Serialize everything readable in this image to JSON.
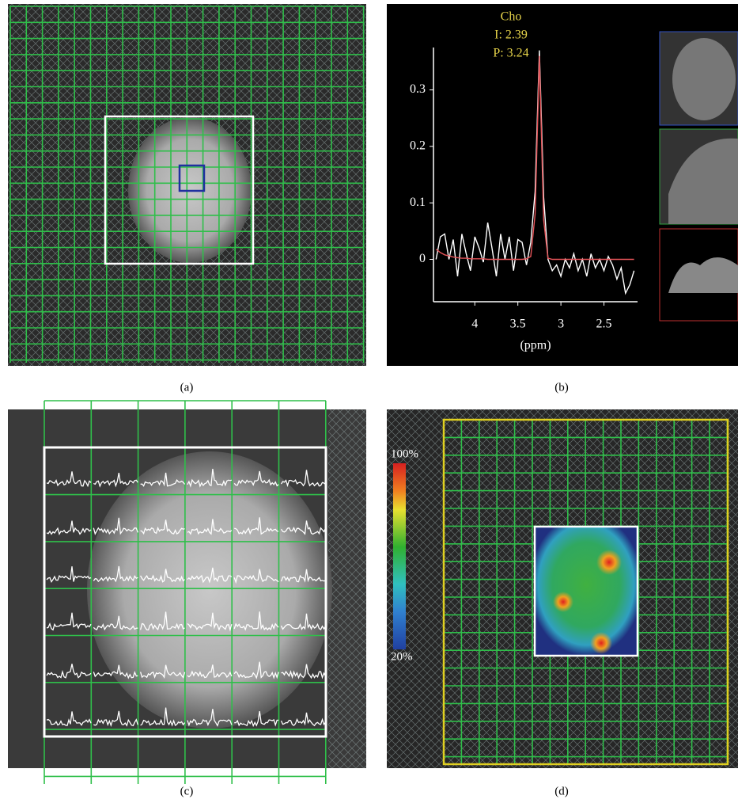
{
  "panel_labels": [
    "(a)",
    "(b)",
    "(c)",
    "(d)"
  ],
  "colorbar_labels": [
    "100%",
    "20%"
  ],
  "chart_data": {
    "type": "line",
    "annotation": [
      "Cho",
      "I: 2.39",
      "P: 3.24"
    ],
    "x_label": "(ppm)",
    "x": [
      4.45,
      4.4,
      4.35,
      4.3,
      4.25,
      4.2,
      4.15,
      4.1,
      4.05,
      4.0,
      3.95,
      3.9,
      3.85,
      3.8,
      3.75,
      3.7,
      3.65,
      3.6,
      3.55,
      3.5,
      3.45,
      3.4,
      3.35,
      3.3,
      3.25,
      3.2,
      3.15,
      3.1,
      3.05,
      3.0,
      2.95,
      2.9,
      2.85,
      2.8,
      2.75,
      2.7,
      2.65,
      2.6,
      2.55,
      2.5,
      2.45,
      2.4,
      2.35,
      2.3,
      2.25,
      2.2,
      2.15
    ],
    "series": [
      {
        "color": "#ffffff",
        "values": [
          0.0,
          0.04,
          0.045,
          0.0,
          0.035,
          -0.03,
          0.045,
          0.01,
          -0.02,
          0.04,
          0.02,
          -0.005,
          0.065,
          0.02,
          -0.03,
          0.045,
          0.0,
          0.04,
          -0.02,
          0.035,
          0.03,
          -0.01,
          0.03,
          0.12,
          0.37,
          0.11,
          0.0,
          -0.02,
          -0.01,
          -0.03,
          0.0,
          -0.015,
          0.01,
          -0.02,
          0.0,
          -0.03,
          0.01,
          -0.015,
          0.0,
          -0.02,
          0.005,
          -0.01,
          -0.035,
          -0.015,
          -0.06,
          -0.045,
          -0.02
        ]
      },
      {
        "color": "#e8555a",
        "values": [
          0.018,
          0.012,
          0.008,
          0.006,
          0.004,
          0.003,
          0.002,
          0.002,
          0.001,
          0.001,
          0.001,
          0.001,
          0.0,
          0.0,
          0.0,
          0.0,
          0.0,
          0.0,
          0.0,
          0.0,
          0.0,
          0.001,
          0.005,
          0.08,
          0.36,
          0.07,
          0.002,
          0.0,
          0.0,
          0.0,
          0.0,
          0.0,
          0.0,
          0.0,
          0.0,
          0.0,
          0.0,
          0.0,
          0.0,
          0.0,
          0.0,
          0.0,
          0.0,
          0.0,
          0.0,
          0.0,
          0.0
        ]
      }
    ],
    "xlim": [
      4.48,
      2.11
    ],
    "ylim": [
      -0.075,
      0.375
    ],
    "xticks": [
      4,
      3.5,
      3,
      2.5
    ],
    "yticks": [
      0,
      0.1,
      0.2,
      0.3
    ]
  }
}
